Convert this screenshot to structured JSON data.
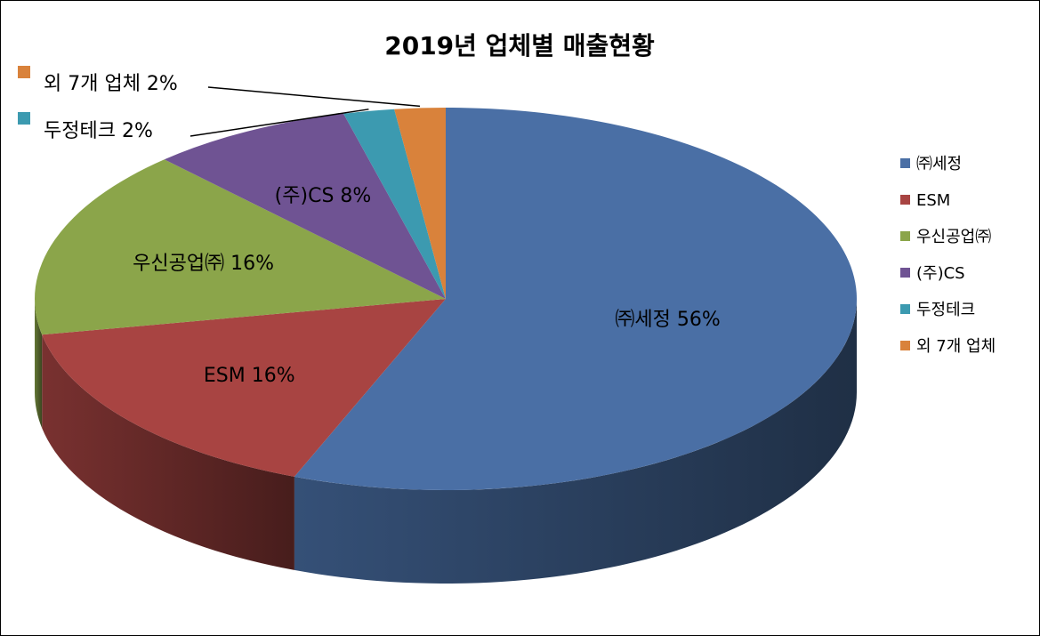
{
  "chart_data": {
    "type": "pie",
    "title": "2019년 업체별 매출현황",
    "categories": [
      "㈜세정",
      "ESM",
      "우신공업㈜",
      "(주)CS",
      "두정테크",
      "외 7개 업체"
    ],
    "values": [
      56,
      16,
      16,
      8,
      2,
      2
    ],
    "unit": "%",
    "labels": [
      "㈜세정 56%",
      "ESM 16%",
      "우신공업㈜ 16%",
      "(주)CS 8%",
      "두정테크 2%",
      "외 7개 업체 2%"
    ],
    "colors": [
      "#4A6FA5",
      "#A84442",
      "#8BA54A",
      "#6F5393",
      "#3C9AB0",
      "#D9823B"
    ],
    "legend_position": "right",
    "style": "3d"
  }
}
